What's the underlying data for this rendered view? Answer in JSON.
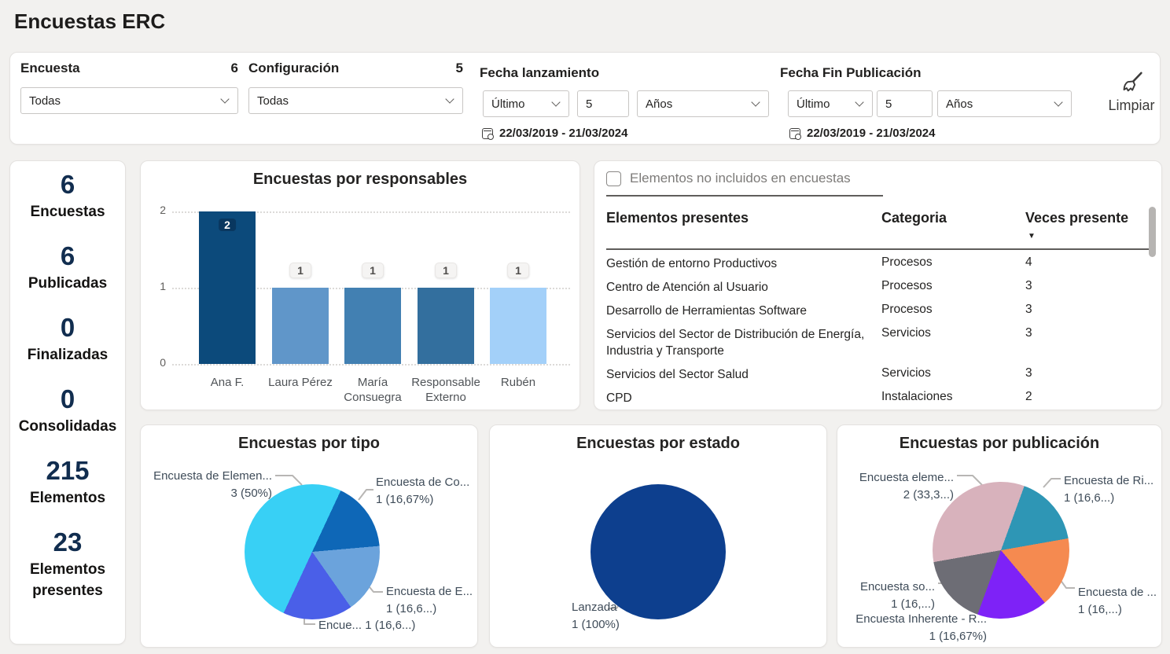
{
  "page": {
    "title": "Encuestas ERC"
  },
  "filters": {
    "encuesta": {
      "label": "Encuesta",
      "count": "6",
      "value": "Todas"
    },
    "configuracion": {
      "label": "Configuración",
      "count": "5",
      "value": "Todas"
    },
    "fecha_lanzamiento": {
      "label": "Fecha lanzamiento",
      "period": "Último",
      "amount": "5",
      "unit": "Años",
      "range": "22/03/2019 - 21/03/2024"
    },
    "fecha_fin": {
      "label": "Fecha Fin Publicación",
      "period": "Último",
      "amount": "5",
      "unit": "Años",
      "range": "22/03/2019 - 21/03/2024"
    },
    "clear_label": "Limpiar"
  },
  "kpis": [
    {
      "value": "6",
      "label": "Encuestas"
    },
    {
      "value": "6",
      "label": "Publicadas"
    },
    {
      "value": "0",
      "label": "Finalizadas"
    },
    {
      "value": "0",
      "label": "Consolidadas"
    },
    {
      "value": "215",
      "label": "Elementos"
    },
    {
      "value": "23",
      "label": "Elementos presentes"
    }
  ],
  "table": {
    "toggle_label": "Elementos no incluidos en encuestas",
    "columns": [
      "Elementos presentes",
      "Categoria",
      "Veces presente"
    ],
    "sort_glyph": "▼",
    "rows": [
      [
        "Gestión de entorno Productivos",
        "Procesos",
        "4"
      ],
      [
        "Centro de Atención al Usuario",
        "Procesos",
        "3"
      ],
      [
        "Desarrollo de Herramientas Software",
        "Procesos",
        "3"
      ],
      [
        "Servicios del Sector de Distribución de Energía, Industria y Transporte",
        "Servicios",
        "3"
      ],
      [
        "Servicios del Sector Salud",
        "Servicios",
        "3"
      ],
      [
        "CPD",
        "Instalaciones",
        "2"
      ]
    ]
  },
  "chart_data": [
    {
      "type": "bar",
      "title": "Encuestas por responsables",
      "categories": [
        "Ana F.",
        "Laura Pérez",
        "María Consuegra",
        "Responsable Externo",
        "Rubén"
      ],
      "values": [
        2,
        1,
        1,
        1,
        1
      ],
      "colors": [
        "#0c4a7b",
        "#6096c9",
        "#4280b2",
        "#336f9e",
        "#a3d0f9"
      ],
      "ylim": [
        0,
        2
      ],
      "yticks": [
        0,
        1,
        2
      ],
      "grid": "dotted horizontal"
    },
    {
      "type": "pie",
      "title": "Encuestas por tipo",
      "rotation_deg": 205,
      "slices": [
        {
          "label": "Encuesta de Elemen...",
          "value_label": "3 (50%)",
          "value": 3,
          "pct": 50,
          "color": "#38d0f5"
        },
        {
          "label": "Encuesta de Co...",
          "value_label": "1 (16,67%)",
          "value": 1,
          "pct": 16.67,
          "color": "#0e67b7"
        },
        {
          "label": "Encuesta de E...",
          "value_label": "1 (16,6...)",
          "value": 1,
          "pct": 16.67,
          "color": "#6ba3dc"
        },
        {
          "label": "Encue...",
          "value_label": "1 (16,6...)",
          "value": 1,
          "pct": 16.67,
          "color": "#4a5fe8"
        }
      ]
    },
    {
      "type": "pie",
      "title": "Encuestas por estado",
      "rotation_deg": 0,
      "slices": [
        {
          "label": "Lanzada",
          "value_label": "1 (100%)",
          "value": 1,
          "pct": 100,
          "color": "#0d3f8e"
        }
      ]
    },
    {
      "type": "pie",
      "title": "Encuestas por publicación",
      "rotation_deg": 260,
      "slices": [
        {
          "label": "Encuesta eleme...",
          "value_label": "2 (33,3...)",
          "value": 2,
          "pct": 33.33,
          "color": "#d8b2bc"
        },
        {
          "label": "Encuesta de Ri...",
          "value_label": "1 (16,6...)",
          "value": 1,
          "pct": 16.67,
          "color": "#2e96b5"
        },
        {
          "label": "Encuesta de ...",
          "value_label": "1 (16,...)",
          "value": 1,
          "pct": 16.67,
          "color": "#f58a50"
        },
        {
          "label": "Encuesta Inherente - R...",
          "value_label": "1 (16,67%)",
          "value": 1,
          "pct": 16.67,
          "color": "#7e22f7"
        },
        {
          "label": "Encuesta so...",
          "value_label": "1 (16,...)",
          "value": 1,
          "pct": 16.67,
          "color": "#6d6d75"
        }
      ]
    }
  ]
}
